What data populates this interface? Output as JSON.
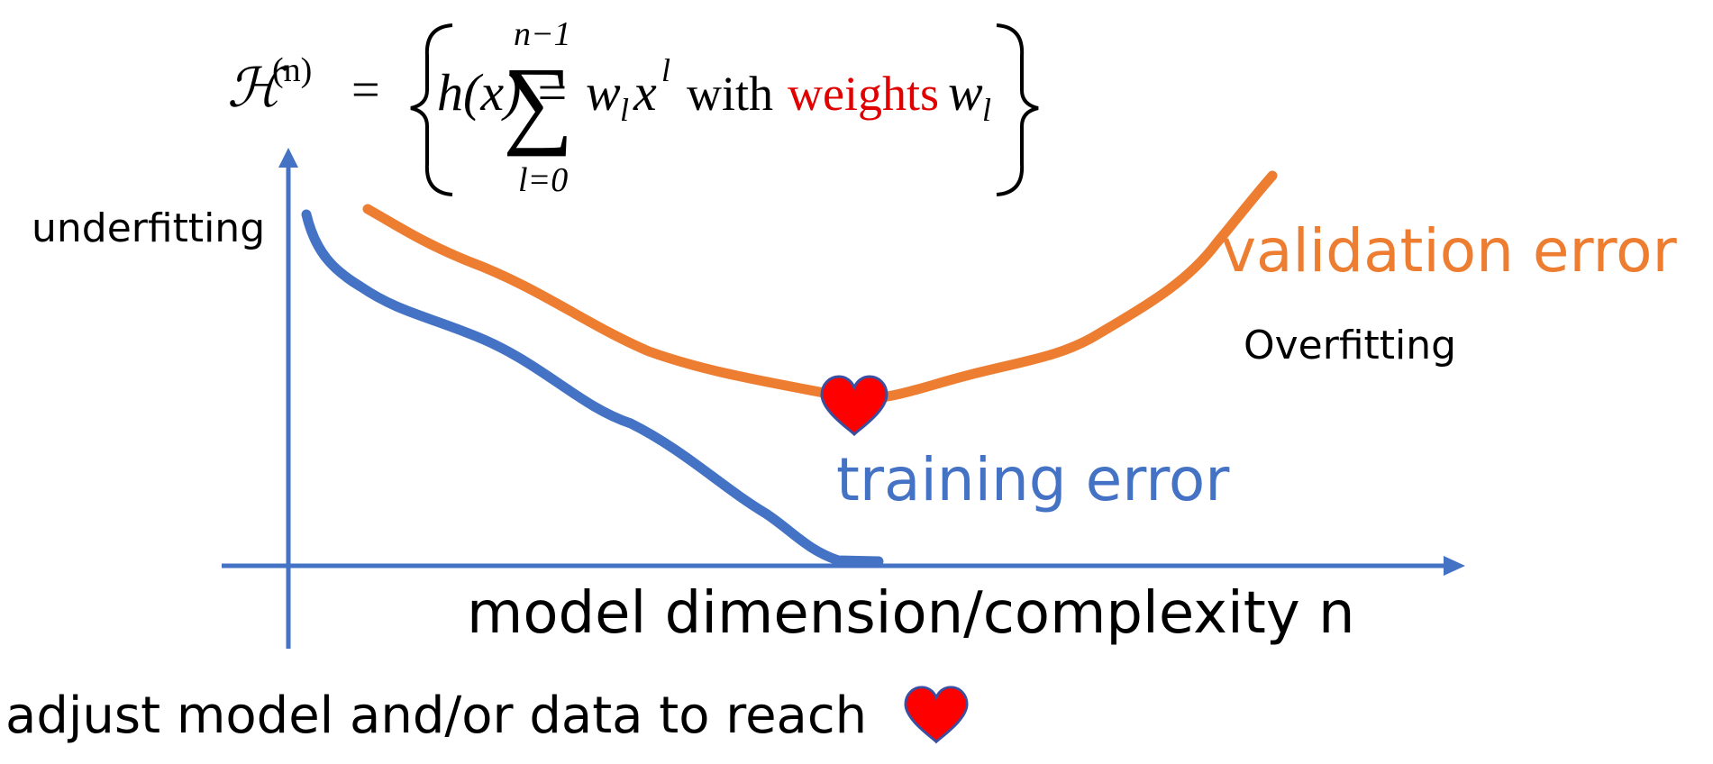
{
  "formula": {
    "script_H": "ℋ",
    "superscript": "(n)",
    "eq": "=",
    "lhs_func": "h(x) =",
    "sum_top": "n−1",
    "sum_bottom": "l=0",
    "sum_symbol": "∑",
    "term_w": "w",
    "term_w_sub": "l",
    "term_x": "x",
    "term_x_sup": "l",
    "word_with": "with",
    "word_weights": "weights",
    "tail_w": "w",
    "tail_w_sub": "l",
    "weights_color": "#E00000"
  },
  "labels": {
    "underfitting": "underfitting",
    "overfitting": "Overfitting",
    "validation_error": "validation error",
    "training_error": "training error",
    "x_axis": "model dimension/complexity n",
    "bottom_text": "adjust model and/or data to reach"
  },
  "colors": {
    "validation": "#ED7D31",
    "training": "#4472C4",
    "axis": "#4472C4",
    "heart": "#FF0000",
    "heart_outline": "#3A4FA0"
  },
  "icons": {
    "optimum_marker": "heart-icon",
    "bottom_marker": "heart-icon"
  }
}
